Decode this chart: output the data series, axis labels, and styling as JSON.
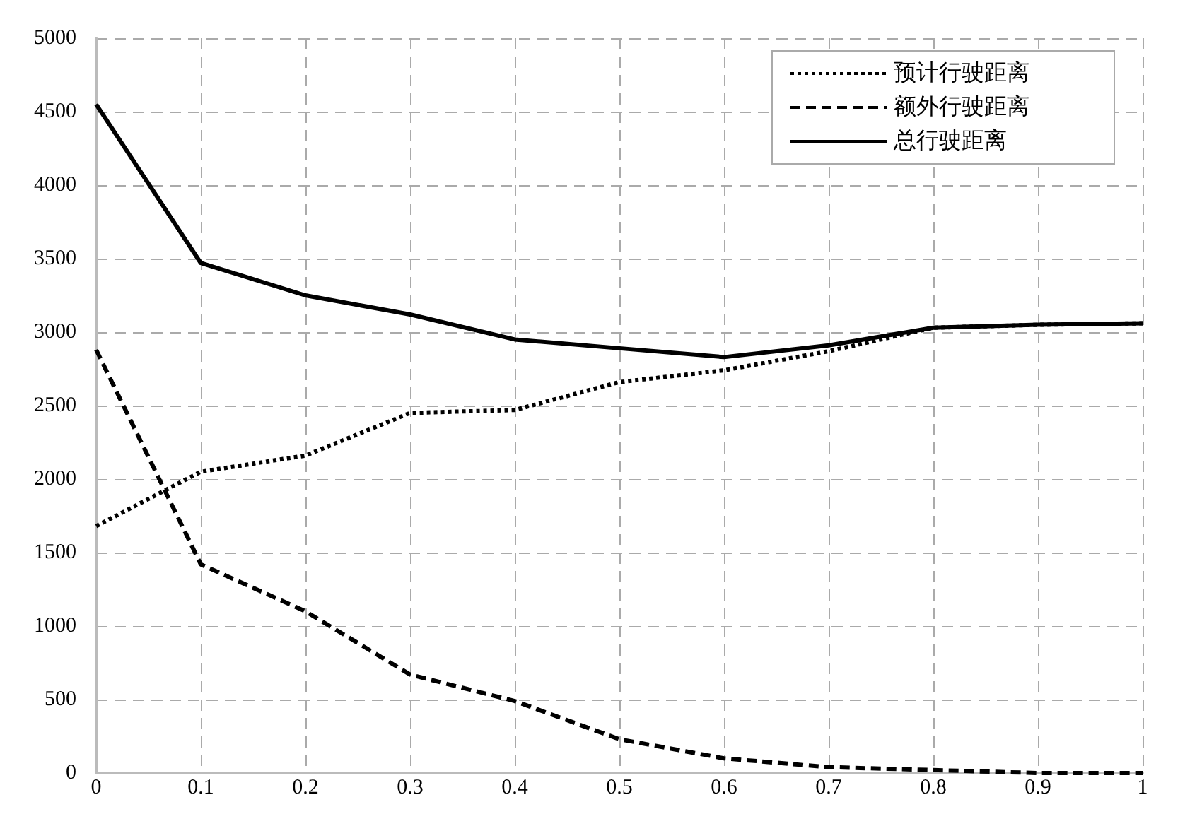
{
  "chart_data": {
    "type": "line",
    "x": [
      0,
      0.1,
      0.2,
      0.3,
      0.4,
      0.5,
      0.6,
      0.7,
      0.8,
      0.9,
      1
    ],
    "series": [
      {
        "name": "预计行驶距离",
        "color": "#000000",
        "line_style": "dotted",
        "values": [
          1680,
          2050,
          2160,
          2450,
          2470,
          2660,
          2740,
          2870,
          3030,
          3050,
          3060
        ]
      },
      {
        "name": "额外行驶距离",
        "color": "#000000",
        "line_style": "dashed",
        "values": [
          2880,
          1420,
          1100,
          670,
          490,
          230,
          100,
          40,
          20,
          0,
          0
        ]
      },
      {
        "name": "总行驶距离",
        "color": "#000000",
        "line_style": "solid",
        "values": [
          4550,
          3470,
          3250,
          3120,
          2950,
          2890,
          2830,
          2910,
          3030,
          3050,
          3060
        ]
      }
    ],
    "xlim": [
      0,
      1
    ],
    "xticks": [
      0,
      0.1,
      0.2,
      0.3,
      0.4,
      0.5,
      0.6,
      0.7,
      0.8,
      0.9,
      1
    ],
    "ylim": [
      0,
      5000
    ],
    "yticks": [
      0,
      500,
      1000,
      1500,
      2000,
      2500,
      3000,
      3500,
      4000,
      4500,
      5000
    ],
    "grid": true,
    "legend": "top right",
    "marker": "none"
  }
}
